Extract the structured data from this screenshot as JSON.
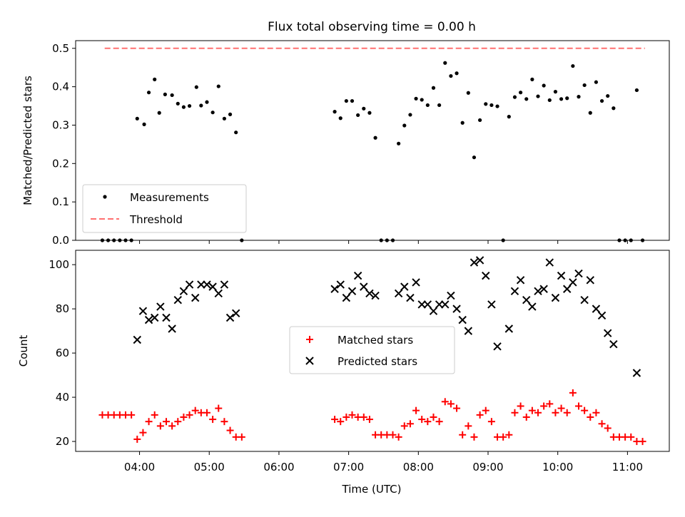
{
  "figure": {
    "title": "Flux total observing time = 0.00 h",
    "xlabel": "Time (UTC)",
    "xticks": [
      "04:00",
      "05:00",
      "06:00",
      "07:00",
      "08:00",
      "09:00",
      "10:00",
      "11:00"
    ],
    "colors": {
      "measurement": "#000000",
      "threshold": "#ff7070",
      "matched": "#ff0000",
      "predicted": "#000000"
    }
  },
  "chart_data": [
    {
      "type": "scatter",
      "ylabel": "Matched/Predicted stars",
      "ylim": [
        0,
        0.52
      ],
      "yticks": [
        "0.0",
        "0.1",
        "0.2",
        "0.3",
        "0.4",
        "0.5"
      ],
      "xlim": [
        "03:05",
        "11:36"
      ],
      "grid": false,
      "legend": {
        "placement": "lower-left",
        "entries": [
          "Measurements",
          "Threshold"
        ]
      },
      "threshold": {
        "name": "Threshold",
        "y": 0.5,
        "x": [
          "03:30",
          "11:15"
        ]
      },
      "series": [
        {
          "name": "Measurements",
          "points": [
            [
              "03:28",
              0
            ],
            [
              "03:33",
              0
            ],
            [
              "03:38",
              0
            ],
            [
              "03:43",
              0
            ],
            [
              "03:48",
              0
            ],
            [
              "03:53",
              0
            ],
            [
              "03:58",
              0.317
            ],
            [
              "04:04",
              0.302
            ],
            [
              "04:08",
              0.385
            ],
            [
              "04:13",
              0.419
            ],
            [
              "04:17",
              0.332
            ],
            [
              "04:22",
              0.38
            ],
            [
              "04:28",
              0.378
            ],
            [
              "04:33",
              0.356
            ],
            [
              "04:38",
              0.347
            ],
            [
              "04:43",
              0.35
            ],
            [
              "04:49",
              0.399
            ],
            [
              "04:53",
              0.351
            ],
            [
              "04:58",
              0.36
            ],
            [
              "05:03",
              0.333
            ],
            [
              "05:08",
              0.401
            ],
            [
              "05:13",
              0.317
            ],
            [
              "05:18",
              0.328
            ],
            [
              "05:23",
              0.281
            ],
            [
              "05:28",
              0
            ],
            [
              "06:48",
              0.335
            ],
            [
              "06:53",
              0.318
            ],
            [
              "06:58",
              0.363
            ],
            [
              "07:03",
              0.363
            ],
            [
              "07:08",
              0.326
            ],
            [
              "07:13",
              0.343
            ],
            [
              "07:18",
              0.332
            ],
            [
              "07:23",
              0.267
            ],
            [
              "07:28",
              0
            ],
            [
              "07:33",
              0
            ],
            [
              "07:38",
              0
            ],
            [
              "07:43",
              0.252
            ],
            [
              "07:48",
              0.299
            ],
            [
              "07:53",
              0.327
            ],
            [
              "07:58",
              0.369
            ],
            [
              "08:03",
              0.366
            ],
            [
              "08:08",
              0.352
            ],
            [
              "08:13",
              0.397
            ],
            [
              "08:18",
              0.352
            ],
            [
              "08:23",
              0.462
            ],
            [
              "08:28",
              0.428
            ],
            [
              "08:33",
              0.435
            ],
            [
              "08:38",
              0.306
            ],
            [
              "08:43",
              0.384
            ],
            [
              "08:48",
              0.216
            ],
            [
              "08:53",
              0.313
            ],
            [
              "08:58",
              0.355
            ],
            [
              "09:03",
              0.352
            ],
            [
              "09:08",
              0.349
            ],
            [
              "09:13",
              0
            ],
            [
              "09:18",
              0.322
            ],
            [
              "09:23",
              0.373
            ],
            [
              "09:28",
              0.385
            ],
            [
              "09:33",
              0.368
            ],
            [
              "09:38",
              0.419
            ],
            [
              "09:43",
              0.375
            ],
            [
              "09:48",
              0.403
            ],
            [
              "09:53",
              0.365
            ],
            [
              "09:58",
              0.387
            ],
            [
              "10:03",
              0.368
            ],
            [
              "10:08",
              0.37
            ],
            [
              "10:13",
              0.454
            ],
            [
              "10:18",
              0.374
            ],
            [
              "10:23",
              0.404
            ],
            [
              "10:28",
              0.332
            ],
            [
              "10:33",
              0.412
            ],
            [
              "10:38",
              0.363
            ],
            [
              "10:43",
              0.376
            ],
            [
              "10:48",
              0.344
            ],
            [
              "10:53",
              0
            ],
            [
              "10:58",
              0
            ],
            [
              "11:03",
              0
            ],
            [
              "11:08",
              0.391
            ],
            [
              "11:13",
              0
            ]
          ]
        }
      ]
    },
    {
      "type": "scatter",
      "ylabel": "Count",
      "ylim": [
        15.5,
        106.5
      ],
      "yticks": [
        "20",
        "40",
        "60",
        "80",
        "100"
      ],
      "xlim": [
        "03:05",
        "11:36"
      ],
      "grid": false,
      "legend": {
        "placement": "center",
        "entries": [
          "Matched stars",
          "Predicted stars"
        ]
      },
      "series": [
        {
          "name": "Matched stars",
          "points": [
            [
              "03:28",
              32
            ],
            [
              "03:33",
              32
            ],
            [
              "03:38",
              32
            ],
            [
              "03:43",
              32
            ],
            [
              "03:48",
              32
            ],
            [
              "03:53",
              32
            ],
            [
              "03:58",
              21
            ],
            [
              "04:03",
              24
            ],
            [
              "04:08",
              29
            ],
            [
              "04:13",
              32
            ],
            [
              "04:18",
              27
            ],
            [
              "04:23",
              29
            ],
            [
              "04:28",
              27
            ],
            [
              "04:33",
              29
            ],
            [
              "04:38",
              31
            ],
            [
              "04:43",
              32
            ],
            [
              "04:48",
              34
            ],
            [
              "04:53",
              33
            ],
            [
              "04:58",
              33
            ],
            [
              "05:03",
              30
            ],
            [
              "05:08",
              35
            ],
            [
              "05:13",
              29
            ],
            [
              "05:18",
              25
            ],
            [
              "05:23",
              22
            ],
            [
              "05:28",
              22
            ],
            [
              "06:48",
              30
            ],
            [
              "06:53",
              29
            ],
            [
              "06:58",
              31
            ],
            [
              "07:03",
              32
            ],
            [
              "07:08",
              31
            ],
            [
              "07:13",
              31
            ],
            [
              "07:18",
              30
            ],
            [
              "07:23",
              23
            ],
            [
              "07:28",
              23
            ],
            [
              "07:33",
              23
            ],
            [
              "07:38",
              23
            ],
            [
              "07:43",
              22
            ],
            [
              "07:48",
              27
            ],
            [
              "07:53",
              28
            ],
            [
              "07:58",
              34
            ],
            [
              "08:03",
              30
            ],
            [
              "08:08",
              29
            ],
            [
              "08:13",
              31
            ],
            [
              "08:18",
              29
            ],
            [
              "08:23",
              38
            ],
            [
              "08:28",
              37
            ],
            [
              "08:33",
              35
            ],
            [
              "08:38",
              23
            ],
            [
              "08:43",
              27
            ],
            [
              "08:48",
              22
            ],
            [
              "08:53",
              32
            ],
            [
              "08:58",
              34
            ],
            [
              "09:03",
              29
            ],
            [
              "09:08",
              22
            ],
            [
              "09:13",
              22
            ],
            [
              "09:18",
              23
            ],
            [
              "09:23",
              33
            ],
            [
              "09:28",
              36
            ],
            [
              "09:33",
              31
            ],
            [
              "09:38",
              34
            ],
            [
              "09:43",
              33
            ],
            [
              "09:48",
              36
            ],
            [
              "09:53",
              37
            ],
            [
              "09:58",
              33
            ],
            [
              "10:03",
              35
            ],
            [
              "10:08",
              33
            ],
            [
              "10:13",
              42
            ],
            [
              "10:18",
              36
            ],
            [
              "10:23",
              34
            ],
            [
              "10:28",
              31
            ],
            [
              "10:33",
              33
            ],
            [
              "10:38",
              28
            ],
            [
              "10:43",
              26
            ],
            [
              "10:48",
              22
            ],
            [
              "10:53",
              22
            ],
            [
              "10:58",
              22
            ],
            [
              "11:03",
              22
            ],
            [
              "11:08",
              20
            ],
            [
              "11:13",
              20
            ]
          ]
        },
        {
          "name": "Predicted stars",
          "points": [
            [
              "03:58",
              66
            ],
            [
              "04:03",
              79
            ],
            [
              "04:08",
              75
            ],
            [
              "04:13",
              76
            ],
            [
              "04:18",
              81
            ],
            [
              "04:23",
              76
            ],
            [
              "04:28",
              71
            ],
            [
              "04:33",
              84
            ],
            [
              "04:38",
              88
            ],
            [
              "04:43",
              91
            ],
            [
              "04:48",
              85
            ],
            [
              "04:53",
              91
            ],
            [
              "04:58",
              91
            ],
            [
              "05:03",
              90
            ],
            [
              "05:08",
              87
            ],
            [
              "05:13",
              91
            ],
            [
              "05:18",
              76
            ],
            [
              "05:23",
              78
            ],
            [
              "06:48",
              89
            ],
            [
              "06:53",
              91
            ],
            [
              "06:58",
              85
            ],
            [
              "07:03",
              88
            ],
            [
              "07:08",
              95
            ],
            [
              "07:13",
              90
            ],
            [
              "07:18",
              87
            ],
            [
              "07:23",
              86
            ],
            [
              "07:43",
              87
            ],
            [
              "07:48",
              90
            ],
            [
              "07:53",
              85
            ],
            [
              "07:58",
              92
            ],
            [
              "08:03",
              82
            ],
            [
              "08:08",
              82
            ],
            [
              "08:13",
              79
            ],
            [
              "08:18",
              82
            ],
            [
              "08:23",
              82
            ],
            [
              "08:28",
              86
            ],
            [
              "08:33",
              80
            ],
            [
              "08:38",
              75
            ],
            [
              "08:43",
              70
            ],
            [
              "08:48",
              101
            ],
            [
              "08:53",
              102
            ],
            [
              "08:58",
              95
            ],
            [
              "09:03",
              82
            ],
            [
              "09:08",
              63
            ],
            [
              "09:18",
              71
            ],
            [
              "09:23",
              88
            ],
            [
              "09:28",
              93
            ],
            [
              "09:33",
              84
            ],
            [
              "09:38",
              81
            ],
            [
              "09:43",
              88
            ],
            [
              "09:48",
              89
            ],
            [
              "09:53",
              101
            ],
            [
              "09:58",
              85
            ],
            [
              "10:03",
              95
            ],
            [
              "10:08",
              89
            ],
            [
              "10:13",
              92
            ],
            [
              "10:18",
              96
            ],
            [
              "10:23",
              84
            ],
            [
              "10:28",
              93
            ],
            [
              "10:33",
              80
            ],
            [
              "10:38",
              77
            ],
            [
              "10:43",
              69
            ],
            [
              "10:48",
              64
            ],
            [
              "11:08",
              51
            ]
          ]
        }
      ]
    }
  ]
}
